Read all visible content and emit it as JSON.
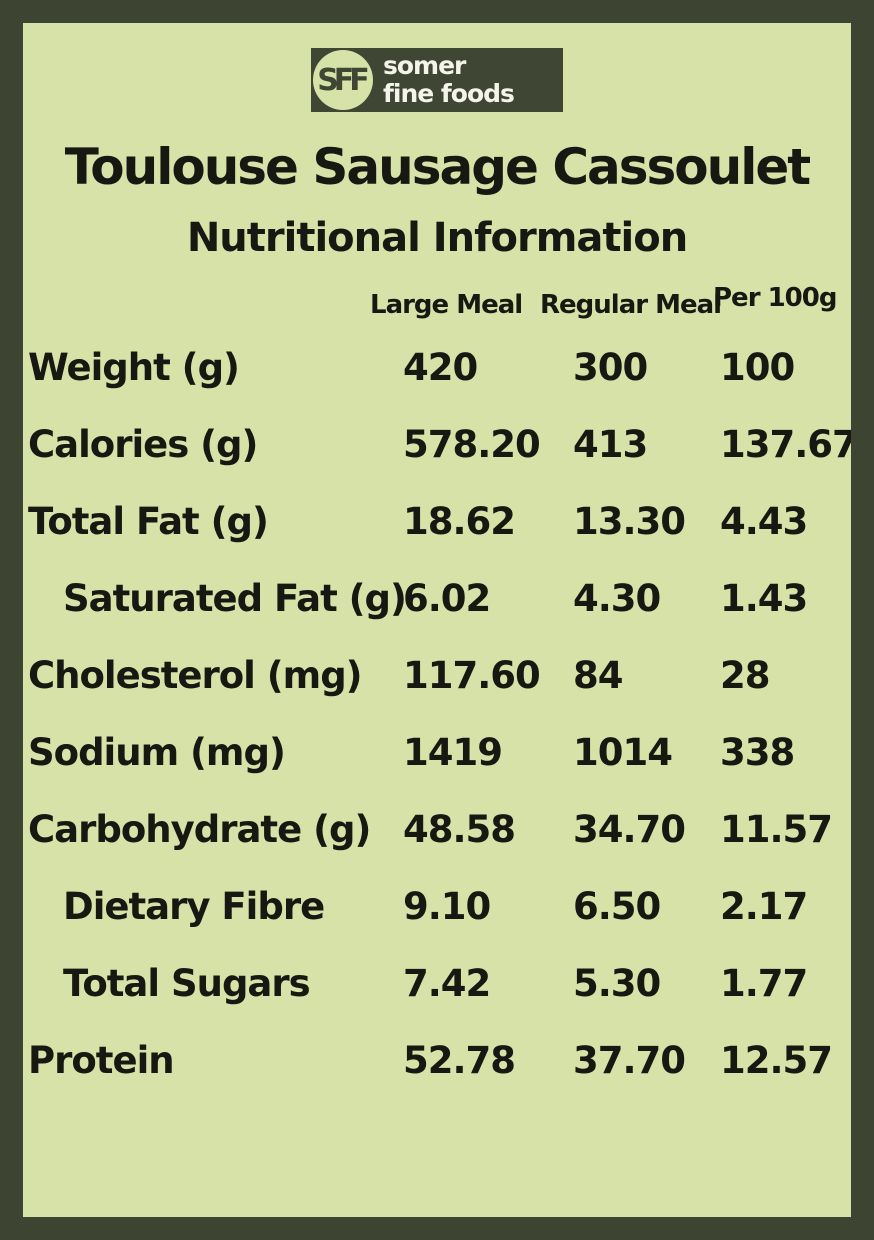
{
  "brand": {
    "monogram": "SFF",
    "name_line1": "somer",
    "name_line2": "fine foods"
  },
  "title": "Toulouse Sausage Cassoulet",
  "subtitle": "Nutritional Information",
  "table": {
    "columns": [
      "Large Meal",
      "Regular Meal",
      "Per 100g"
    ],
    "rows": [
      {
        "label": "Weight (g)",
        "indent": false,
        "values": [
          "420",
          "300",
          "100"
        ]
      },
      {
        "label": "Calories (g)",
        "indent": false,
        "values": [
          "578.20",
          "413",
          "137.67"
        ]
      },
      {
        "label": "Total Fat (g)",
        "indent": false,
        "values": [
          "18.62",
          "13.30",
          "4.43"
        ]
      },
      {
        "label": "Saturated Fat (g)",
        "indent": true,
        "values": [
          "6.02",
          "4.30",
          "1.43"
        ]
      },
      {
        "label": "Cholesterol (mg)",
        "indent": false,
        "values": [
          "117.60",
          "84",
          "28"
        ]
      },
      {
        "label": "Sodium (mg)",
        "indent": false,
        "values": [
          "1419",
          "1014",
          "338"
        ]
      },
      {
        "label": "Carbohydrate (g)",
        "indent": false,
        "values": [
          "48.58",
          "34.70",
          "11.57"
        ]
      },
      {
        "label": "Dietary Fibre",
        "indent": true,
        "values": [
          "9.10",
          "6.50",
          "2.17"
        ]
      },
      {
        "label": "Total Sugars",
        "indent": true,
        "values": [
          "7.42",
          "5.30",
          "1.77"
        ]
      },
      {
        "label": "Protein",
        "indent": false,
        "values": [
          "52.78",
          "37.70",
          "12.57"
        ]
      }
    ]
  },
  "colors": {
    "background": "#d6e2a7",
    "border": "#3e4432",
    "text": "#181812",
    "logo_bg": "#404634",
    "logo_text": "#f4f4ea"
  }
}
